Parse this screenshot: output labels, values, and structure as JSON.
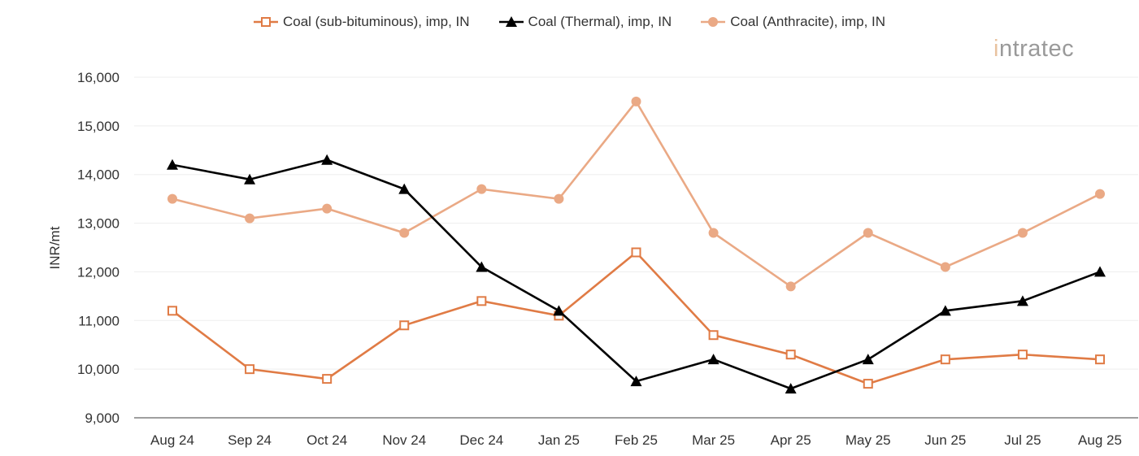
{
  "logo": "intratec",
  "chart_data": {
    "type": "line",
    "ylabel": "INR/mt",
    "xlabel": "",
    "ylim": [
      9000,
      16000
    ],
    "yticks": [
      9000,
      10000,
      11000,
      12000,
      13000,
      14000,
      15000,
      16000
    ],
    "ytick_labels": [
      "9,000",
      "10,000",
      "11,000",
      "12,000",
      "13,000",
      "14,000",
      "15,000",
      "16,000"
    ],
    "grid": true,
    "legend_position": "top",
    "categories": [
      "Aug 24",
      "Sep 24",
      "Oct 24",
      "Nov 24",
      "Dec 24",
      "Jan 25",
      "Feb 25",
      "Mar 25",
      "Apr 25",
      "May 25",
      "Jun 25",
      "Jul 25",
      "Aug 25"
    ],
    "series": [
      {
        "name": "Coal (sub-bituminous), imp, IN",
        "color": "#e07b45",
        "marker": "square-open",
        "values": [
          11200,
          10000,
          9800,
          10900,
          11400,
          11100,
          12400,
          10700,
          10300,
          9700,
          10200,
          10300,
          10200
        ]
      },
      {
        "name": "Coal (Thermal), imp, IN",
        "color": "#000000",
        "marker": "triangle",
        "values": [
          14200,
          13900,
          14300,
          13700,
          12100,
          11200,
          9750,
          10200,
          9600,
          10200,
          11200,
          11400,
          12000
        ]
      },
      {
        "name": "Coal (Anthracite), imp, IN",
        "color": "#eaa985",
        "marker": "circle",
        "values": [
          13500,
          13100,
          13300,
          12800,
          13700,
          13500,
          15500,
          12800,
          11700,
          12800,
          12100,
          12800,
          13600
        ]
      }
    ]
  }
}
